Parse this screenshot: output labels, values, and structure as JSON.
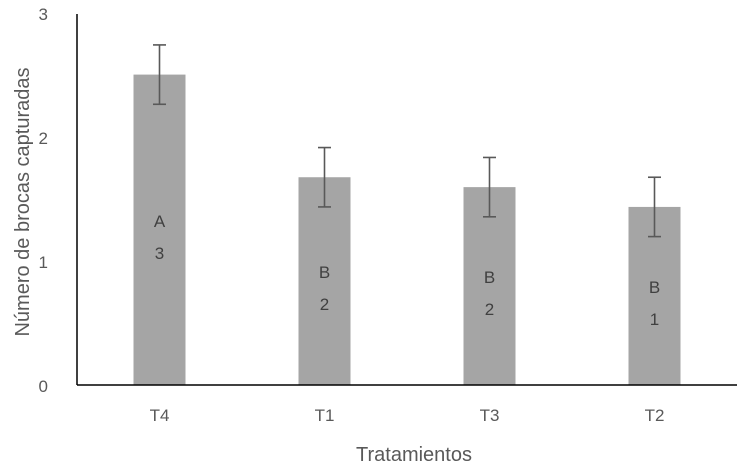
{
  "chart_data": {
    "type": "bar",
    "categories": [
      "T4",
      "T1",
      "T3",
      "T2"
    ],
    "values": [
      2.51,
      1.68,
      1.6,
      1.44
    ],
    "error": [
      0.24,
      0.24,
      0.24,
      0.24
    ],
    "bar_labels": [
      [
        "A",
        "3"
      ],
      [
        "B",
        "2"
      ],
      [
        "B",
        "2"
      ],
      [
        "B",
        "1"
      ]
    ],
    "xlabel": "Tratamientos",
    "ylabel": "Número de brocas capturadas",
    "ylim": [
      0,
      3
    ],
    "yticks": [
      "0",
      "1",
      "2",
      "3"
    ],
    "grid": false,
    "colors": {
      "bar": "#a5a5a5",
      "error_bar": "#595959",
      "axis": "#000000",
      "text": "#595959"
    }
  }
}
